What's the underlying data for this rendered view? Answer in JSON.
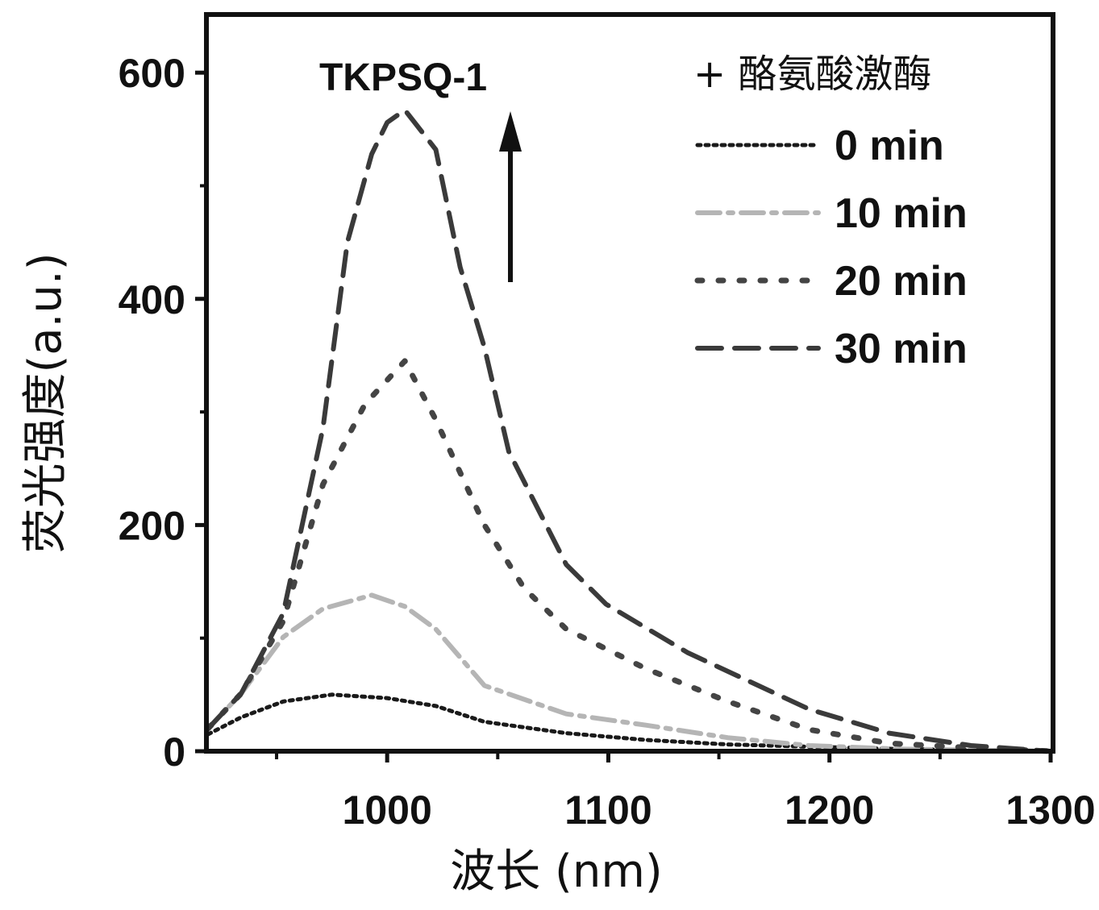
{
  "chart_data": {
    "type": "line",
    "title": "TKPSQ-1",
    "xlabel": "波长 (nm)",
    "ylabel": "荧光强度(a.u.)",
    "xlim": [
      919,
      1300
    ],
    "ylim": [
      0,
      650
    ],
    "xticks": [
      1000,
      1100,
      1200,
      1300
    ],
    "xtick_labels": [
      "1000",
      "1100",
      "1200",
      "1300"
    ],
    "xminor": [
      950,
      1050,
      1150,
      1250
    ],
    "yticks": [
      0,
      200,
      400,
      600
    ],
    "ytick_labels": [
      "0",
      "200",
      "400",
      "600"
    ],
    "yminor": [
      100,
      300,
      500
    ],
    "grid": false,
    "legend_title": "+ 酪氨酸激酶",
    "legend_position": "top-right",
    "annotation": "increasing-arrow",
    "series": [
      {
        "name": "0 min",
        "color": "#1a1a1a",
        "dash": "dotted",
        "x": [
          919,
          934,
          953,
          975,
          1000,
          1022,
          1044,
          1081,
          1117,
          1154,
          1191,
          1230,
          1300
        ],
        "y": [
          15,
          30,
          44,
          50,
          47,
          40,
          26,
          16,
          10,
          6,
          4,
          2,
          0
        ]
      },
      {
        "name": "10 min",
        "color": "#b5b5b5",
        "dash": "dashdot",
        "x": [
          919,
          934,
          953,
          971,
          993,
          1008,
          1022,
          1044,
          1081,
          1117,
          1154,
          1191,
          1230,
          1300
        ],
        "y": [
          20,
          51,
          101,
          126,
          138,
          128,
          108,
          58,
          33,
          23,
          12,
          5,
          2,
          0
        ]
      },
      {
        "name": "20 min",
        "color": "#444444",
        "dash": "dots",
        "x": [
          919,
          934,
          953,
          971,
          990,
          1008,
          1022,
          1044,
          1062,
          1081,
          1117,
          1154,
          1191,
          1227,
          1264,
          1300
        ],
        "y": [
          20,
          51,
          115,
          236,
          307,
          345,
          293,
          200,
          144,
          108,
          73,
          44,
          19,
          7,
          3,
          0
        ]
      },
      {
        "name": "30 min",
        "color": "#3a3a3a",
        "dash": "dashed",
        "x": [
          919,
          934,
          953,
          971,
          982,
          993,
          1000,
          1008,
          1022,
          1033,
          1044,
          1055,
          1081,
          1099,
          1136,
          1191,
          1227,
          1264,
          1300
        ],
        "y": [
          20,
          51,
          122,
          286,
          450,
          528,
          556,
          567,
          532,
          428,
          357,
          265,
          165,
          130,
          87,
          37,
          16,
          5,
          0
        ]
      }
    ]
  }
}
